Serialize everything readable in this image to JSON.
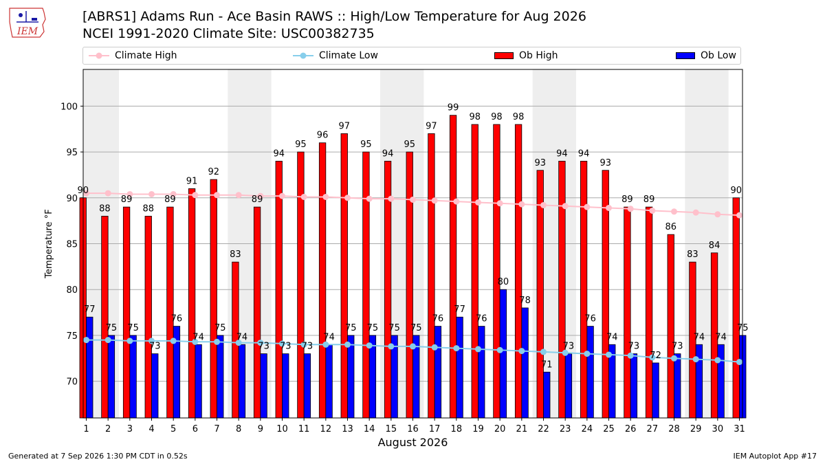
{
  "header": {
    "logo_text": "IEM",
    "title_line1": "[ABRS1] Adams Run - Ace Basin RAWS :: High/Low Temperature for Aug 2026",
    "title_line2": "NCEI 1991-2020 Climate Site: USC00382735"
  },
  "legend": {
    "climate_high": "Climate High",
    "climate_low": "Climate Low",
    "ob_high": "Ob High",
    "ob_low": "Ob Low"
  },
  "colors": {
    "ob_high": "#ff0000",
    "ob_low": "#0000ff",
    "climate_high": "#ffc0cb",
    "climate_low": "#87ceeb",
    "weekend_band": "#eeeeee",
    "grid": "#aaaaaa"
  },
  "chart_data": {
    "type": "bar",
    "xlabel": "August 2026",
    "ylabel": "Temperature °F",
    "ylim": [
      66,
      104
    ],
    "yticks": [
      70,
      75,
      80,
      85,
      90,
      95,
      100
    ],
    "grid": true,
    "legend_placement": "top",
    "categories": [
      "1",
      "2",
      "3",
      "4",
      "5",
      "6",
      "7",
      "8",
      "9",
      "10",
      "11",
      "12",
      "13",
      "14",
      "15",
      "16",
      "17",
      "18",
      "19",
      "20",
      "21",
      "22",
      "23",
      "24",
      "25",
      "26",
      "27",
      "28",
      "29",
      "30",
      "31"
    ],
    "weekend_band_days": [
      [
        1,
        2
      ],
      [
        8,
        9
      ],
      [
        15,
        16
      ],
      [
        22,
        23
      ],
      [
        29,
        30
      ]
    ],
    "series": [
      {
        "name": "Ob High",
        "type": "bar",
        "values": [
          90,
          88,
          89,
          88,
          89,
          91,
          92,
          83,
          89,
          94,
          95,
          96,
          97,
          95,
          94,
          95,
          97,
          99,
          98,
          98,
          98,
          93,
          94,
          94,
          93,
          89,
          89,
          86,
          83,
          84,
          90
        ]
      },
      {
        "name": "Ob Low",
        "type": "bar",
        "values": [
          77,
          75,
          75,
          73,
          76,
          74,
          75,
          74,
          73,
          73,
          73,
          74,
          75,
          75,
          75,
          75,
          76,
          77,
          76,
          80,
          78,
          71,
          73,
          76,
          74,
          73,
          72,
          73,
          74,
          74,
          75
        ]
      },
      {
        "name": "Climate High",
        "type": "line",
        "values": [
          90.5,
          90.5,
          90.4,
          90.4,
          90.4,
          90.3,
          90.3,
          90.3,
          90.2,
          90.2,
          90.1,
          90.1,
          90.0,
          89.9,
          89.9,
          89.8,
          89.7,
          89.6,
          89.5,
          89.4,
          89.3,
          89.2,
          89.1,
          89.0,
          88.9,
          88.8,
          88.6,
          88.5,
          88.4,
          88.2,
          88.1
        ]
      },
      {
        "name": "Climate Low",
        "type": "line",
        "values": [
          74.5,
          74.5,
          74.4,
          74.4,
          74.4,
          74.3,
          74.3,
          74.2,
          74.2,
          74.1,
          74.0,
          74.0,
          74.0,
          73.9,
          73.8,
          73.8,
          73.7,
          73.6,
          73.5,
          73.4,
          73.3,
          73.2,
          73.1,
          73.0,
          72.9,
          72.8,
          72.6,
          72.5,
          72.4,
          72.3,
          72.1
        ]
      }
    ]
  },
  "footer": {
    "generated": "Generated at 7 Sep 2026 1:30 PM CDT in 0.52s",
    "app": "IEM Autoplot App #17"
  }
}
